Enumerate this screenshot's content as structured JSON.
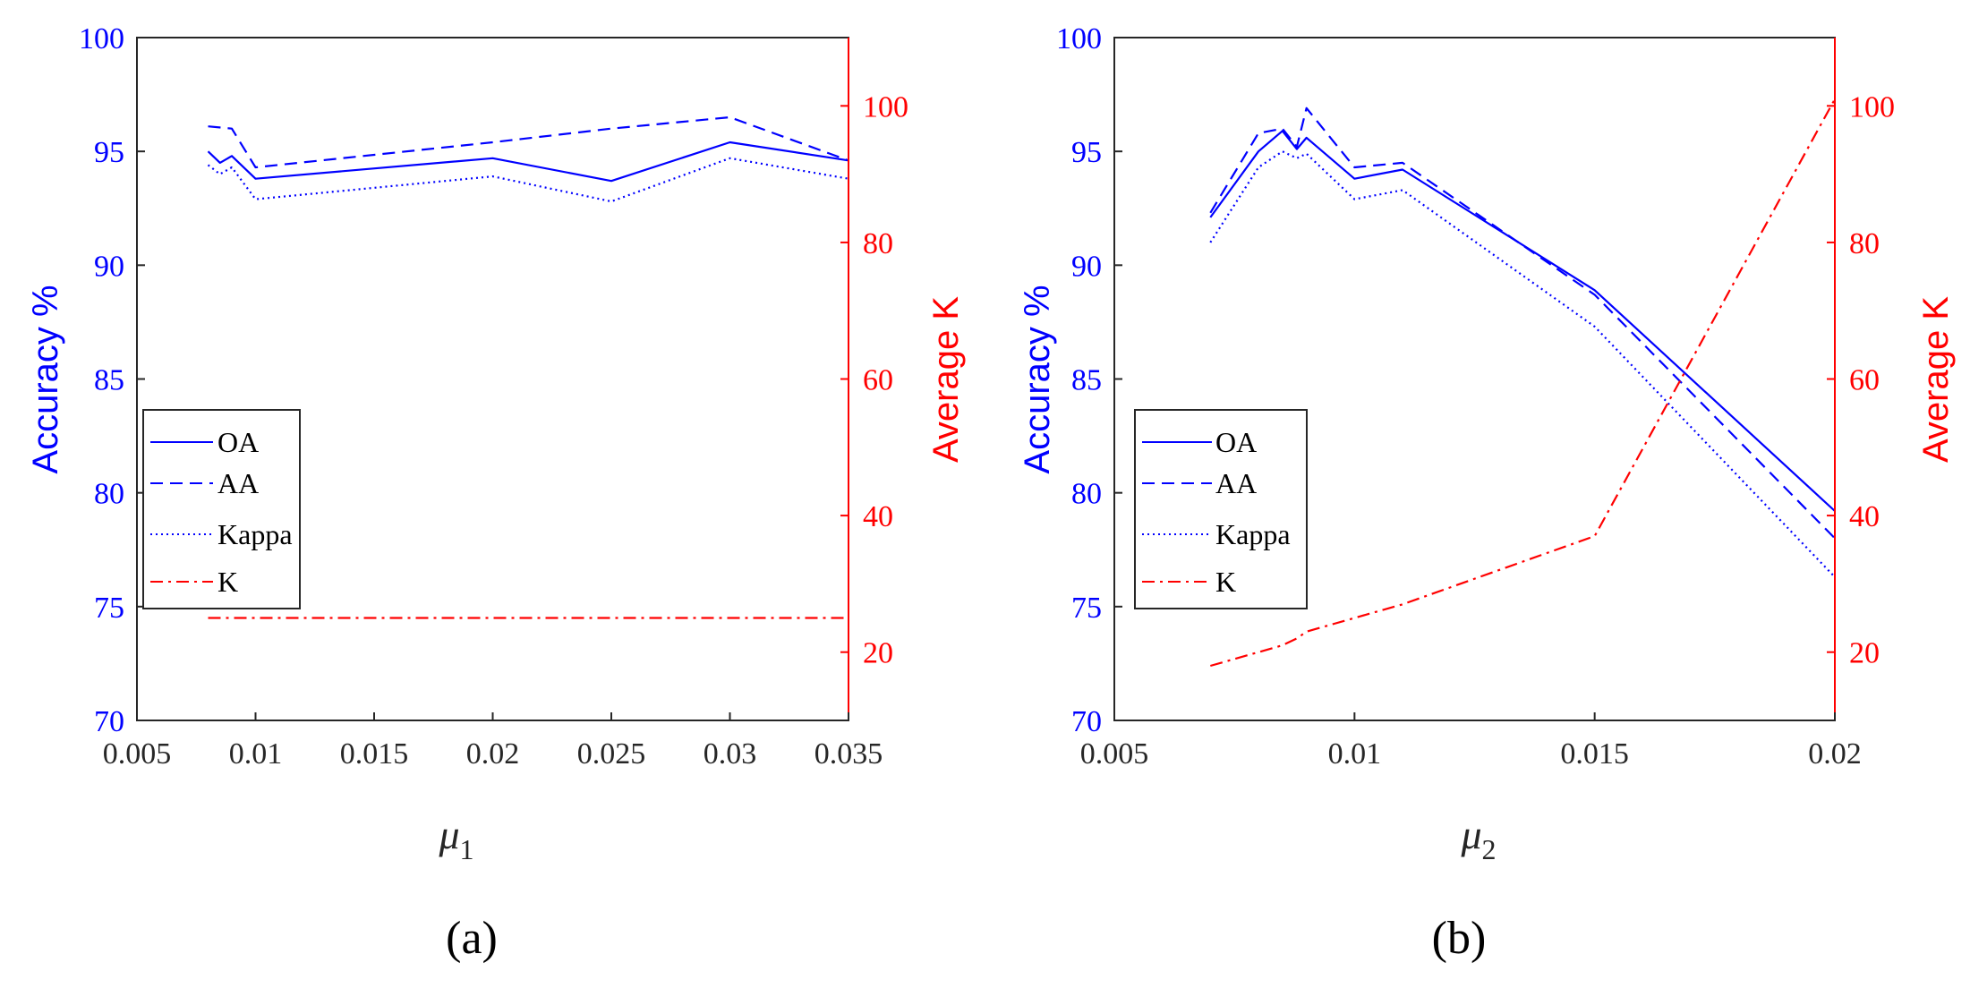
{
  "chart_data": [
    {
      "type": "line",
      "caption": "(a)",
      "xlabel_symbol": "μ",
      "xlabel_subscript": "1",
      "ylabel_left": "Accuracy %",
      "ylabel_right": "Average K",
      "xlim": [
        0.005,
        0.035
      ],
      "ylim_left": [
        70,
        100
      ],
      "ylim_right": [
        10,
        110
      ],
      "xticks": [
        "0.005",
        "0.01",
        "0.015",
        "0.02",
        "0.025",
        "0.03",
        "0.035"
      ],
      "xtick_values": [
        0.005,
        0.01,
        0.015,
        0.02,
        0.025,
        0.03,
        0.035
      ],
      "yticks_left": [
        "70",
        "75",
        "80",
        "85",
        "90",
        "95",
        "100"
      ],
      "ytick_values_left": [
        70,
        75,
        80,
        85,
        90,
        95,
        100
      ],
      "yticks_right": [
        "20",
        "40",
        "60",
        "80",
        "100"
      ],
      "ytick_values_right": [
        20,
        40,
        60,
        80,
        100
      ],
      "legend_position": "middle-left",
      "series": [
        {
          "name": "OA",
          "axis": "left",
          "color": "#0000ff",
          "style": "solid",
          "x": [
            0.008,
            0.0085,
            0.009,
            0.01,
            0.02,
            0.025,
            0.03,
            0.035
          ],
          "y": [
            95.0,
            94.5,
            94.8,
            93.8,
            94.7,
            93.7,
            95.4,
            94.6
          ]
        },
        {
          "name": "AA",
          "axis": "left",
          "color": "#0000ff",
          "style": "dashed",
          "x": [
            0.008,
            0.009,
            0.01,
            0.02,
            0.025,
            0.03,
            0.035
          ],
          "y": [
            96.1,
            96.0,
            94.3,
            95.4,
            96.0,
            96.5,
            94.6
          ]
        },
        {
          "name": "Kappa",
          "axis": "left",
          "color": "#0000ff",
          "style": "dotted",
          "x": [
            0.008,
            0.0085,
            0.009,
            0.01,
            0.02,
            0.025,
            0.03,
            0.035
          ],
          "y": [
            94.4,
            94.0,
            94.3,
            92.9,
            93.9,
            92.8,
            94.7,
            93.8
          ]
        },
        {
          "name": "K",
          "axis": "right",
          "color": "#ff0000",
          "style": "dashdot",
          "x": [
            0.008,
            0.035
          ],
          "y": [
            25,
            25
          ]
        }
      ]
    },
    {
      "type": "line",
      "caption": "(b)",
      "xlabel_symbol": "μ",
      "xlabel_subscript": "2",
      "ylabel_left": "Accuracy %",
      "ylabel_right": "Average K",
      "xlim": [
        0.005,
        0.02
      ],
      "ylim_left": [
        70,
        100
      ],
      "ylim_right": [
        10,
        110
      ],
      "xticks": [
        "0.005",
        "0.01",
        "0.015",
        "0.02"
      ],
      "xtick_values": [
        0.005,
        0.01,
        0.015,
        0.02
      ],
      "yticks_left": [
        "70",
        "75",
        "80",
        "85",
        "90",
        "95",
        "100"
      ],
      "ytick_values_left": [
        70,
        75,
        80,
        85,
        90,
        95,
        100
      ],
      "yticks_right": [
        "20",
        "40",
        "60",
        "80",
        "100"
      ],
      "ytick_values_right": [
        20,
        40,
        60,
        80,
        100
      ],
      "legend_position": "middle-left",
      "series": [
        {
          "name": "OA",
          "axis": "left",
          "color": "#0000ff",
          "style": "solid",
          "x": [
            0.007,
            0.008,
            0.0085,
            0.0088,
            0.009,
            0.01,
            0.011,
            0.015,
            0.02
          ],
          "y": [
            92.1,
            95.0,
            95.9,
            95.1,
            95.6,
            93.8,
            94.2,
            88.9,
            79.2
          ]
        },
        {
          "name": "AA",
          "axis": "left",
          "color": "#0000ff",
          "style": "dashed",
          "x": [
            0.007,
            0.008,
            0.0085,
            0.0088,
            0.009,
            0.01,
            0.011,
            0.015,
            0.02
          ],
          "y": [
            92.3,
            95.8,
            96.0,
            95.2,
            96.9,
            94.3,
            94.5,
            88.7,
            78.0
          ]
        },
        {
          "name": "Kappa",
          "axis": "left",
          "color": "#0000ff",
          "style": "dotted",
          "x": [
            0.007,
            0.008,
            0.0085,
            0.0088,
            0.009,
            0.01,
            0.011,
            0.015,
            0.02
          ],
          "y": [
            91.0,
            94.3,
            95.0,
            94.7,
            94.9,
            92.9,
            93.3,
            87.3,
            76.3
          ]
        },
        {
          "name": "K",
          "axis": "right",
          "color": "#ff0000",
          "style": "dashdot",
          "x": [
            0.007,
            0.0085,
            0.0088,
            0.009,
            0.01,
            0.011,
            0.015,
            0.02
          ],
          "y": [
            18,
            21,
            22,
            23,
            25,
            27,
            37,
            101
          ]
        }
      ]
    }
  ]
}
